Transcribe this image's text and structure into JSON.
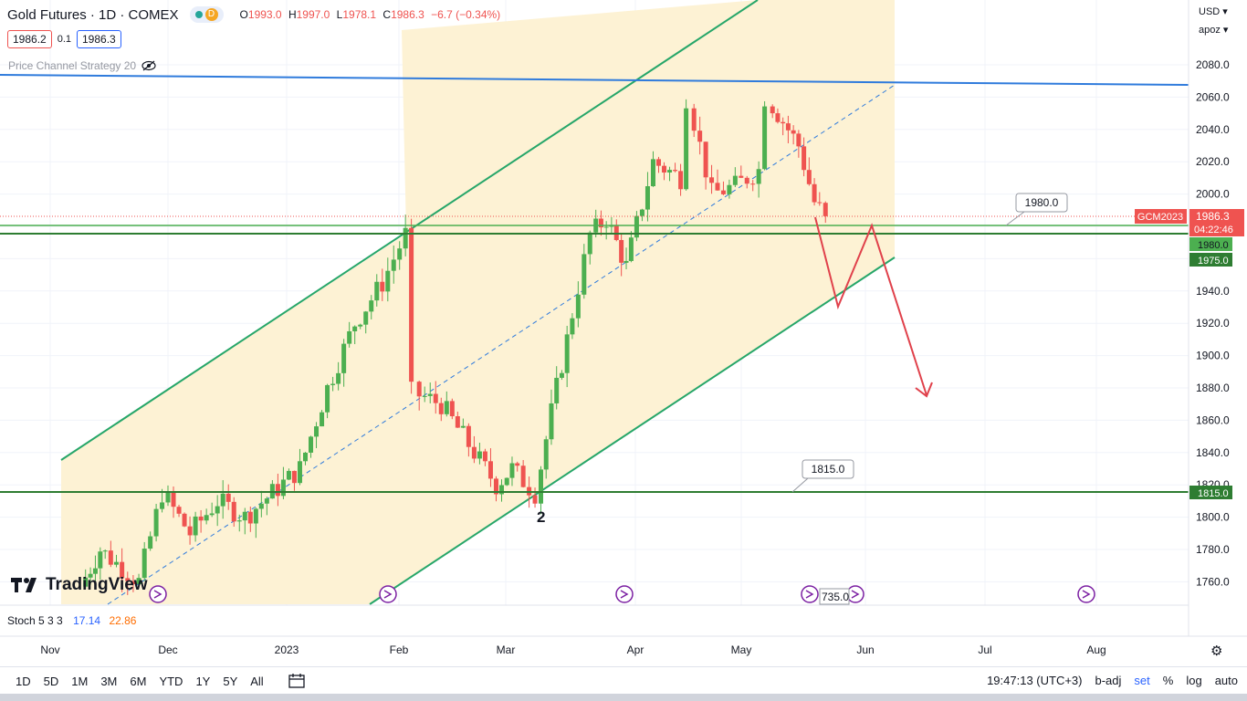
{
  "header": {
    "symbol": "Gold Futures · 1D · COMEX",
    "delay_badge": "D",
    "ohlc": {
      "open_label": "O",
      "open": "1993.0",
      "high_label": "H",
      "high": "1997.0",
      "low_label": "L",
      "low": "1978.1",
      "close_label": "C",
      "close": "1986.3",
      "change": "−6.7 (−0.34%)"
    },
    "bid": "1986.2",
    "spread": "0.1",
    "ask": "1986.3"
  },
  "indicator": {
    "label": "Price Channel Strategy 20",
    "icon": "eye-off-icon"
  },
  "price_axis": {
    "currency": "USD",
    "currency_arrow": "▾",
    "session": "apoz",
    "session_arrow": "▾",
    "ticks": [
      "2080.0",
      "2060.0",
      "2040.0",
      "2020.0",
      "2000.0",
      "1980.0",
      "1960.0",
      "1940.0",
      "1920.0",
      "1900.0",
      "1880.0",
      "1860.0",
      "1840.0",
      "1820.0",
      "1800.0",
      "1780.0",
      "1760.0"
    ],
    "tag_symbol": "GCM2023",
    "tag_price": "1986.3",
    "tag_countdown": "04:22:46",
    "tag_1980": "1980.0",
    "tag_1975": "1975.0",
    "tag_1815": "1815.0"
  },
  "annotations": {
    "label_1980": "1980.0",
    "label_1815": "1815.0",
    "wave_label": "2",
    "partial_label": "735.0"
  },
  "time_axis": [
    "Nov",
    "Dec",
    "2023",
    "Feb",
    "Mar",
    "Apr",
    "May",
    "Jun",
    "Jul",
    "Aug"
  ],
  "watermark": "TradingView",
  "stoch": {
    "label": "Stoch 5 3 3",
    "k": "17.14",
    "d": "22.86"
  },
  "bottom_bar": {
    "timeframes": [
      "1D",
      "5D",
      "1M",
      "3M",
      "6M",
      "YTD",
      "1Y",
      "5Y",
      "All"
    ],
    "compare_icon": "calendar-range-icon",
    "time": "19:47:13 (UTC+3)",
    "badj": "b-adj",
    "set": "set",
    "percent": "%",
    "log": "log",
    "auto": "auto"
  },
  "colors": {
    "bull": "#4caf50",
    "bear": "#ef5350",
    "channel": "#26a669",
    "channel_fill": "#fdf1d2",
    "resistance": "#2f7bdc",
    "arrow": "#e0414b",
    "support": "#2e7d32"
  },
  "chart_data": {
    "type": "candlestick",
    "title": "Gold Futures · 1D · COMEX",
    "xlabel": "",
    "ylabel": "",
    "ylim": [
      1750,
      2090
    ],
    "x_ticks": [
      "Nov",
      "Dec",
      "2023",
      "Feb",
      "Mar",
      "Apr",
      "May",
      "Jun",
      "Jul",
      "Aug"
    ],
    "close_path": [
      [
        "2022-11-10",
        1757
      ],
      [
        "2022-11-15",
        1780
      ],
      [
        "2022-11-25",
        1760
      ],
      [
        "2022-12-01",
        1815
      ],
      [
        "2022-12-08",
        1790
      ],
      [
        "2022-12-15",
        1810
      ],
      [
        "2022-12-22",
        1800
      ],
      [
        "2022-12-29",
        1815
      ],
      [
        "2023-01-05",
        1830
      ],
      [
        "2023-01-12",
        1880
      ],
      [
        "2023-01-19",
        1920
      ],
      [
        "2023-01-26",
        1945
      ],
      [
        "2023-02-01",
        1975
      ],
      [
        "2023-02-03",
        1877
      ],
      [
        "2023-02-10",
        1870
      ],
      [
        "2023-02-17",
        1845
      ],
      [
        "2023-02-24",
        1820
      ],
      [
        "2023-02-28",
        1830
      ],
      [
        "2023-03-06",
        1815
      ],
      [
        "2023-03-10",
        1865
      ],
      [
        "2023-03-14",
        1910
      ],
      [
        "2023-03-20",
        1975
      ],
      [
        "2023-03-24",
        1985
      ],
      [
        "2023-03-29",
        1955
      ],
      [
        "2023-04-05",
        2020
      ],
      [
        "2023-04-12",
        2010
      ],
      [
        "2023-04-14",
        2060
      ],
      [
        "2023-04-20",
        2000
      ],
      [
        "2023-04-26",
        2005
      ],
      [
        "2023-05-02",
        2015
      ],
      [
        "2023-05-04",
        2060
      ],
      [
        "2023-05-08",
        2045
      ],
      [
        "2023-05-12",
        2030
      ],
      [
        "2023-05-16",
        1995
      ],
      [
        "2023-05-19",
        1986.3
      ]
    ],
    "levels": [
      {
        "name": "resistance",
        "from": [
          "2022-10-20",
          2073
        ],
        "to": [
          "2023-08-20",
          2068
        ]
      },
      {
        "name": "support-1980",
        "value": 1980
      },
      {
        "name": "support-1975",
        "value": 1975
      },
      {
        "name": "support-1815",
        "value": 1815
      }
    ],
    "projection": [
      [
        "2023-05-19",
        1980
      ],
      [
        "2023-05-25",
        1930
      ],
      [
        "2023-06-01",
        1980
      ],
      [
        "2023-06-15",
        1875
      ]
    ]
  }
}
